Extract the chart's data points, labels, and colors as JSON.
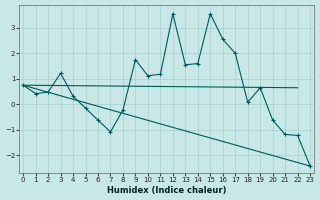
{
  "xlabel": "Humidex (Indice chaleur)",
  "bg_color": "#c8e8e8",
  "grid_color": "#a8cccc",
  "line_color": "#005858",
  "xlim": [
    -0.3,
    23.3
  ],
  "ylim": [
    -2.7,
    3.9
  ],
  "xticks": [
    0,
    1,
    2,
    3,
    4,
    5,
    6,
    7,
    8,
    9,
    10,
    11,
    12,
    13,
    14,
    15,
    16,
    17,
    18,
    19,
    20,
    21,
    22,
    23
  ],
  "yticks": [
    -2,
    -1,
    0,
    1,
    2,
    3
  ],
  "series1_y": [
    0.75,
    0.42,
    0.48,
    1.22,
    0.32,
    -0.15,
    -0.62,
    -1.08,
    -0.22,
    1.75,
    1.12,
    1.18,
    3.55,
    1.55,
    1.6,
    3.55,
    2.55,
    2.0,
    0.08,
    0.65,
    -0.62,
    -1.18,
    -1.22,
    -2.42
  ],
  "line2_x": [
    0,
    23
  ],
  "line2_y": [
    0.75,
    -2.42
  ],
  "line3_x": [
    0,
    22
  ],
  "line3_y": [
    0.75,
    0.65
  ],
  "marker_x": [
    0,
    1,
    2,
    3,
    4,
    5,
    6,
    7,
    8,
    9,
    10,
    11,
    12,
    13,
    14,
    15,
    16,
    17,
    18,
    19,
    20,
    21,
    22,
    23
  ],
  "marker_size": 2.5
}
